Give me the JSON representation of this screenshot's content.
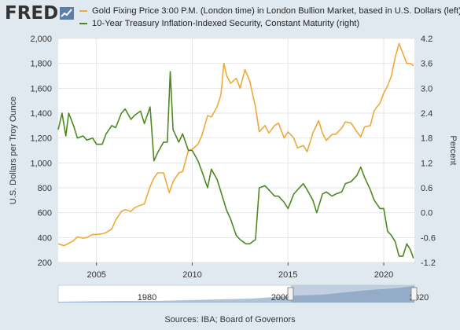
{
  "header": {
    "logo_text": "FRED",
    "logo_icon": "fred-graph-icon"
  },
  "legend": [
    {
      "label": "Gold Fixing Price 3:00 P.M. (London time) in London Bullion Market, based in U.S. Dollars (left)",
      "color": "#f0a836"
    },
    {
      "label": "10-Year Treasury Inflation-Indexed Security, Constant Maturity (right)",
      "color": "#4c8a1f"
    }
  ],
  "footer": {
    "sources": "Sources: IBA; Board of Governors"
  },
  "navigator": {
    "labels": [
      "1980",
      "2000",
      "2020"
    ]
  },
  "chart_data": {
    "type": "line",
    "title": "",
    "xlabel": "",
    "ylabel_left": "U.S. Dollars per Troy Ounce",
    "ylabel_right": "Percent",
    "xlim": [
      2003.0,
      2021.6
    ],
    "ylim_left": [
      200,
      2000
    ],
    "ylim_right": [
      -1.2,
      4.2
    ],
    "x_ticks": [
      "2005",
      "2010",
      "2015",
      "2020"
    ],
    "y_ticks_left": [
      "200",
      "400",
      "600",
      "800",
      "1,000",
      "1,200",
      "1,400",
      "1,600",
      "1,800",
      "2,000"
    ],
    "y_ticks_right": [
      "-1.2",
      "-0.6",
      "0.0",
      "0.6",
      "1.2",
      "1.8",
      "2.4",
      "3.0",
      "3.6",
      "4.2"
    ],
    "grid": true,
    "series": [
      {
        "name": "Gold Fixing Price 3:00 P.M. (London time) in London Bullion Market, based in U.S. Dollars (left)",
        "axis": "left",
        "color": "#f0a836",
        "x": [
          2003.0,
          2003.3,
          2003.5,
          2003.8,
          2004.0,
          2004.3,
          2004.5,
          2004.8,
          2005.0,
          2005.3,
          2005.5,
          2005.8,
          2006.0,
          2006.3,
          2006.5,
          2006.8,
          2007.0,
          2007.3,
          2007.5,
          2007.8,
          2008.0,
          2008.2,
          2008.5,
          2008.8,
          2009.0,
          2009.3,
          2009.5,
          2009.8,
          2010.0,
          2010.3,
          2010.5,
          2010.8,
          2011.0,
          2011.3,
          2011.5,
          2011.65,
          2011.8,
          2012.0,
          2012.3,
          2012.5,
          2012.75,
          2013.0,
          2013.3,
          2013.5,
          2013.8,
          2014.0,
          2014.3,
          2014.5,
          2014.8,
          2015.0,
          2015.3,
          2015.5,
          2015.8,
          2016.0,
          2016.3,
          2016.6,
          2016.8,
          2017.0,
          2017.3,
          2017.5,
          2017.8,
          2018.0,
          2018.3,
          2018.6,
          2018.8,
          2019.0,
          2019.3,
          2019.5,
          2019.8,
          2020.0,
          2020.2,
          2020.4,
          2020.6,
          2020.8,
          2021.0,
          2021.2,
          2021.4,
          2021.55
        ],
        "y": [
          350,
          335,
          350,
          375,
          405,
          395,
          400,
          425,
          425,
          430,
          440,
          470,
          540,
          610,
          625,
          610,
          640,
          660,
          670,
          810,
          880,
          920,
          920,
          760,
          850,
          920,
          930,
          1100,
          1110,
          1150,
          1220,
          1380,
          1370,
          1450,
          1550,
          1800,
          1700,
          1640,
          1680,
          1600,
          1750,
          1660,
          1450,
          1250,
          1300,
          1240,
          1300,
          1320,
          1200,
          1250,
          1200,
          1120,
          1140,
          1090,
          1240,
          1340,
          1240,
          1180,
          1230,
          1230,
          1280,
          1330,
          1320,
          1250,
          1210,
          1290,
          1300,
          1420,
          1480,
          1560,
          1620,
          1700,
          1850,
          1960,
          1880,
          1800,
          1800,
          1780
        ]
      },
      {
        "name": "10-Year Treasury Inflation-Indexed Security, Constant Maturity (right)",
        "axis": "right",
        "color": "#4c8a1f",
        "x": [
          2003.0,
          2003.2,
          2003.4,
          2003.55,
          2003.8,
          2004.0,
          2004.3,
          2004.5,
          2004.8,
          2005.0,
          2005.3,
          2005.5,
          2005.8,
          2006.0,
          2006.3,
          2006.5,
          2006.8,
          2007.0,
          2007.3,
          2007.5,
          2007.8,
          2008.0,
          2008.2,
          2008.5,
          2008.7,
          2008.85,
          2009.0,
          2009.3,
          2009.5,
          2009.8,
          2010.0,
          2010.3,
          2010.5,
          2010.8,
          2011.0,
          2011.3,
          2011.5,
          2011.8,
          2012.0,
          2012.3,
          2012.5,
          2012.8,
          2013.0,
          2013.3,
          2013.5,
          2013.8,
          2014.0,
          2014.3,
          2014.5,
          2014.8,
          2015.0,
          2015.3,
          2015.5,
          2015.8,
          2016.0,
          2016.3,
          2016.5,
          2016.8,
          2017.0,
          2017.3,
          2017.5,
          2017.8,
          2018.0,
          2018.3,
          2018.6,
          2018.8,
          2019.0,
          2019.3,
          2019.5,
          2019.8,
          2020.0,
          2020.2,
          2020.4,
          2020.6,
          2020.8,
          2021.0,
          2021.2,
          2021.4,
          2021.55
        ],
        "y": [
          2.0,
          2.4,
          1.85,
          2.4,
          2.1,
          1.8,
          1.85,
          1.75,
          1.8,
          1.65,
          1.65,
          1.9,
          2.1,
          2.05,
          2.4,
          2.5,
          2.25,
          2.35,
          2.45,
          2.15,
          2.55,
          1.25,
          1.45,
          1.7,
          1.7,
          3.4,
          2.0,
          1.7,
          1.9,
          1.5,
          1.5,
          1.25,
          1.0,
          0.6,
          1.05,
          0.8,
          0.5,
          0.05,
          -0.15,
          -0.55,
          -0.65,
          -0.75,
          -0.75,
          -0.65,
          0.6,
          0.65,
          0.55,
          0.4,
          0.4,
          0.25,
          0.1,
          0.45,
          0.55,
          0.7,
          0.55,
          0.3,
          0.0,
          0.45,
          0.5,
          0.4,
          0.45,
          0.5,
          0.7,
          0.75,
          0.9,
          1.1,
          0.85,
          0.55,
          0.3,
          0.1,
          0.1,
          -0.45,
          -0.55,
          -0.7,
          -1.05,
          -1.05,
          -0.75,
          -0.9,
          -1.1
        ]
      }
    ]
  }
}
